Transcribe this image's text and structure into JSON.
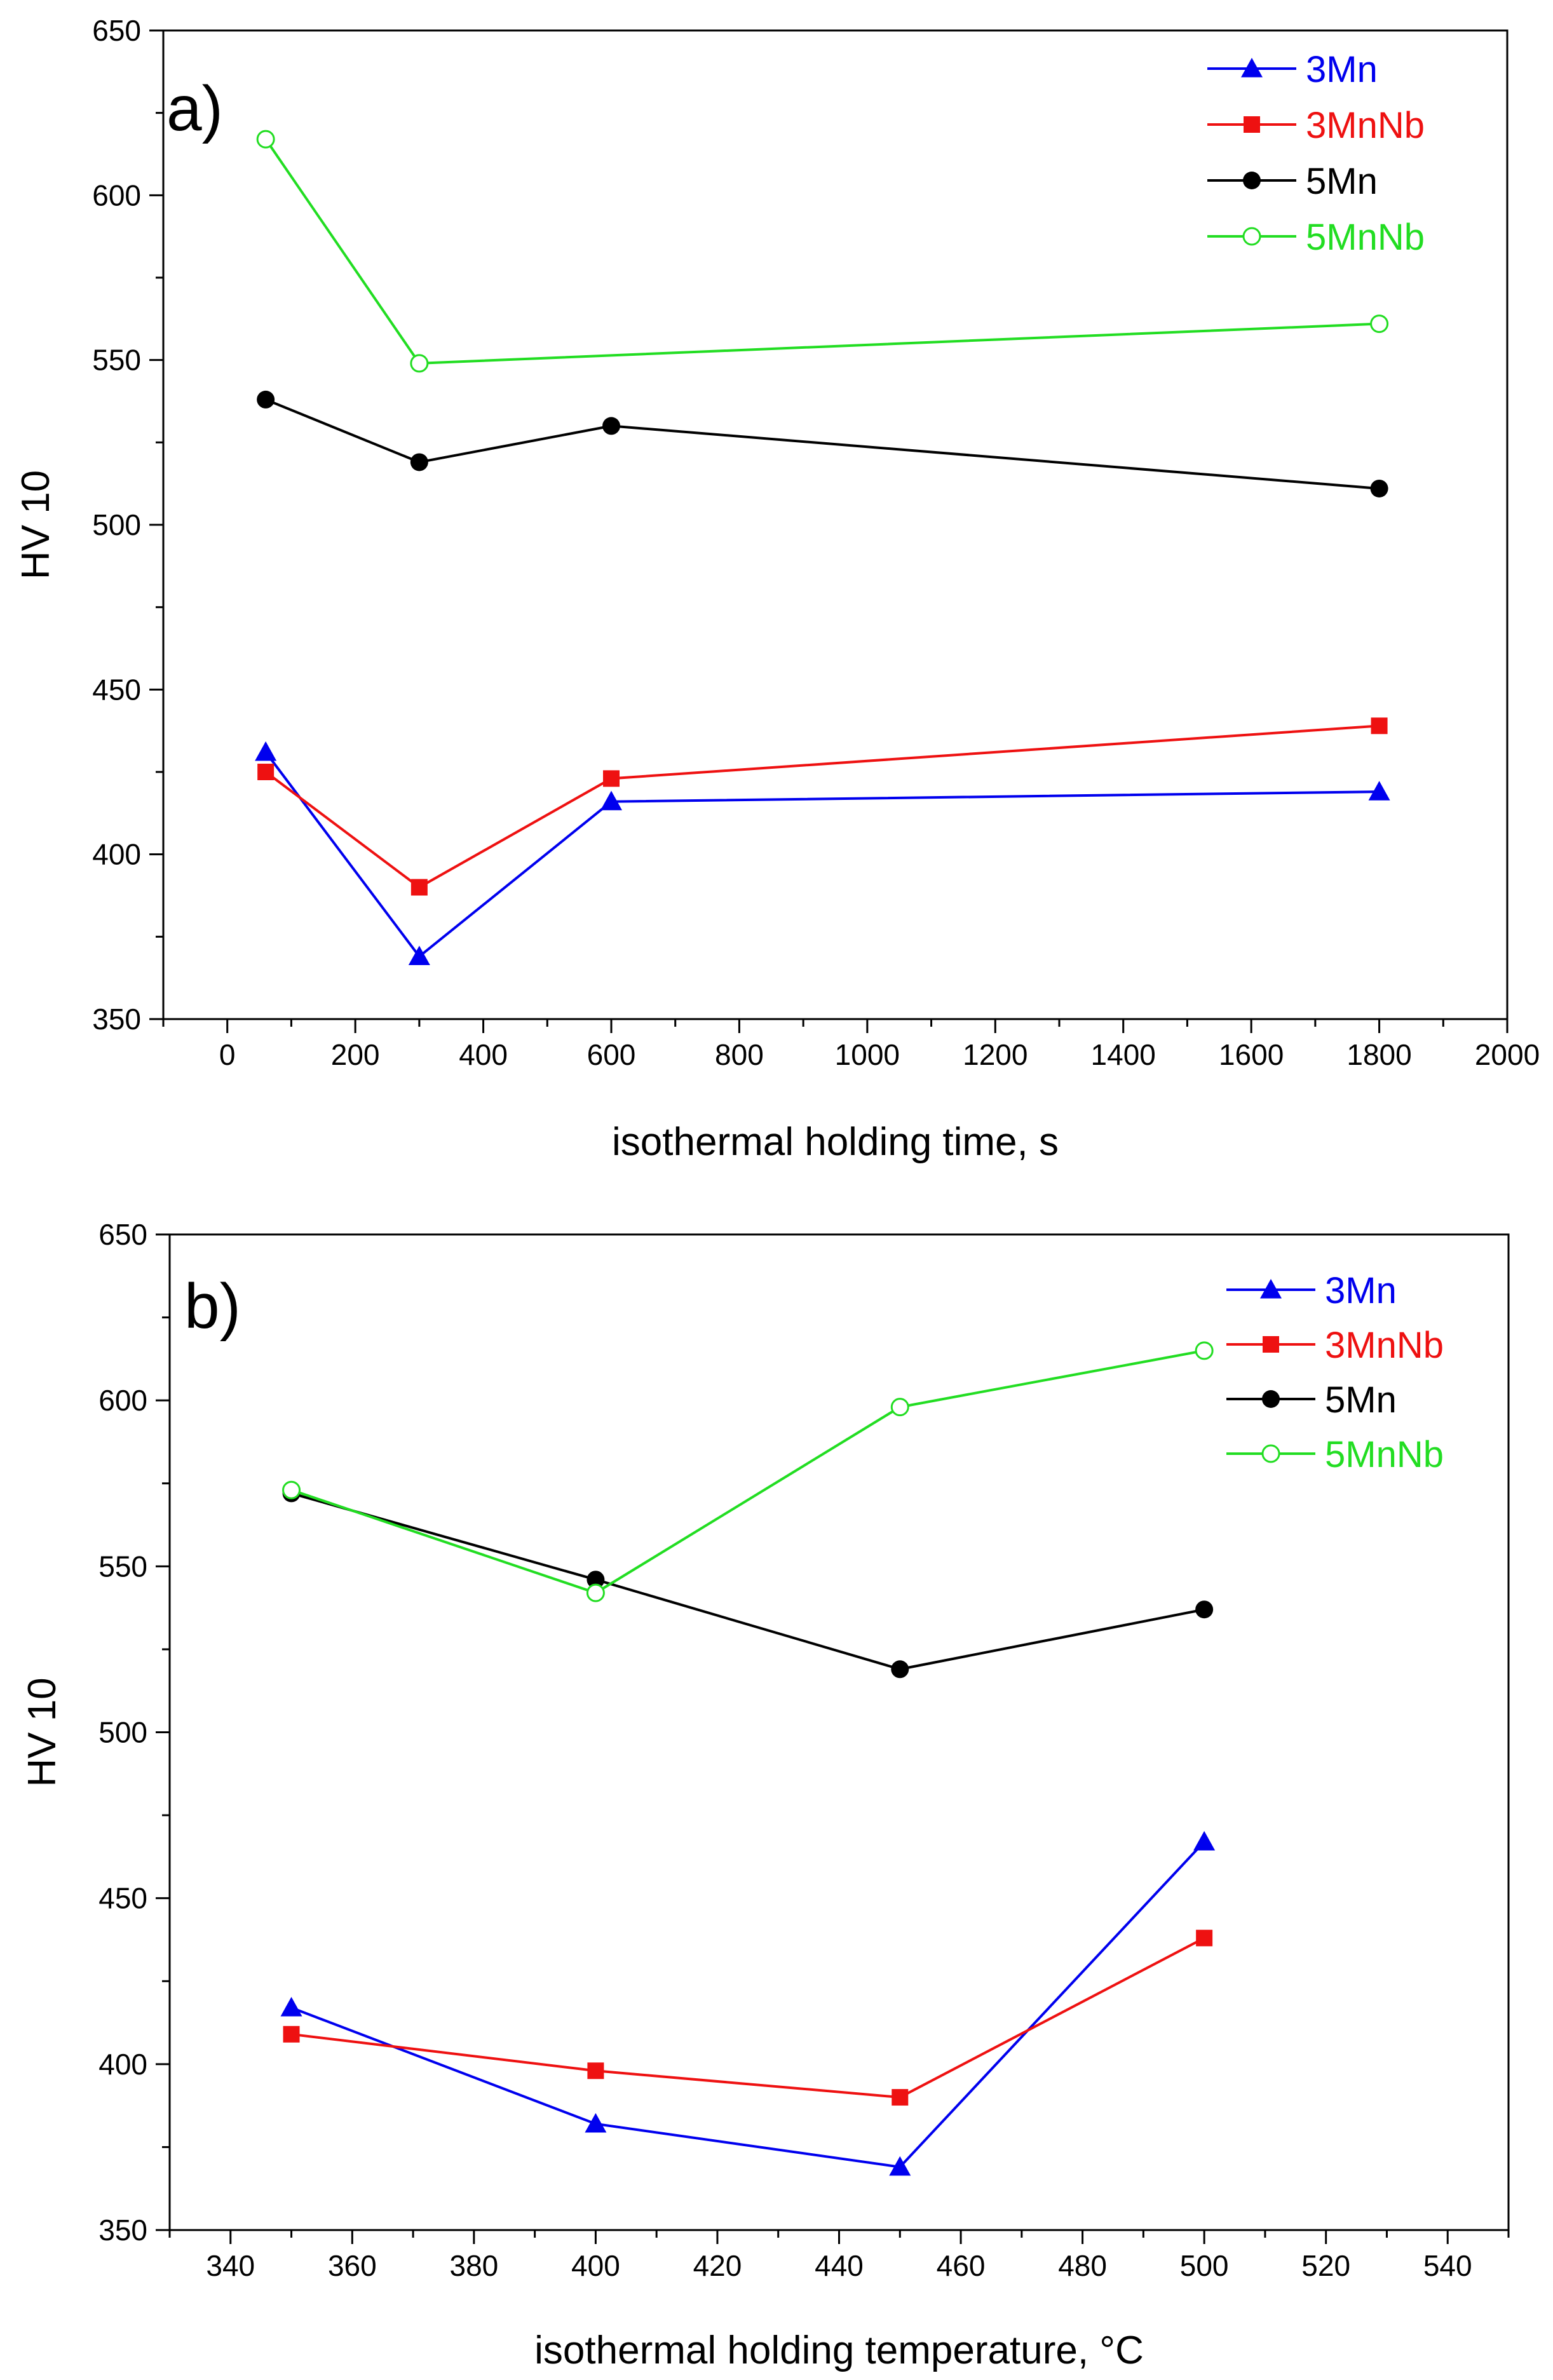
{
  "chart_data": [
    {
      "type": "line",
      "panel_label": "a)",
      "xlabel": "isothermal holding time, s",
      "ylabel": "HV 10",
      "xlim": [
        -100,
        2000
      ],
      "ylim": [
        350,
        650
      ],
      "xticks": [
        0,
        200,
        400,
        600,
        800,
        1000,
        1200,
        1400,
        1600,
        1800,
        2000
      ],
      "yticks": [
        350,
        400,
        450,
        500,
        550,
        600,
        650
      ],
      "grid": false,
      "legend_position": "top-right",
      "series": [
        {
          "name": "3Mn",
          "color": "#0000ee",
          "marker": "triangle",
          "x": [
            60,
            300,
            600,
            1800
          ],
          "y": [
            431,
            369,
            416,
            419
          ]
        },
        {
          "name": "3MnNb",
          "color": "#ee1111",
          "marker": "square",
          "x": [
            60,
            300,
            600,
            1800
          ],
          "y": [
            425,
            390,
            423,
            439
          ]
        },
        {
          "name": "5Mn",
          "color": "#000000",
          "marker": "circle",
          "x": [
            60,
            300,
            600,
            1800
          ],
          "y": [
            538,
            519,
            530,
            511
          ]
        },
        {
          "name": "5MnNb",
          "color": "#22dd22",
          "marker": "open-circle",
          "x": [
            60,
            300,
            1800
          ],
          "y": [
            617,
            549,
            561
          ]
        }
      ]
    },
    {
      "type": "line",
      "panel_label": "b)",
      "xlabel": "isothermal holding temperature, °C",
      "ylabel": "HV 10",
      "xlim": [
        330,
        550
      ],
      "ylim": [
        350,
        650
      ],
      "xticks": [
        340,
        360,
        380,
        400,
        420,
        440,
        460,
        480,
        500,
        520,
        540
      ],
      "yticks": [
        350,
        400,
        450,
        500,
        550,
        600,
        650
      ],
      "grid": false,
      "legend_position": "top-right",
      "series": [
        {
          "name": "3Mn",
          "color": "#0000ee",
          "marker": "triangle",
          "x": [
            350,
            400,
            450,
            500
          ],
          "y": [
            417,
            382,
            369,
            467
          ]
        },
        {
          "name": "3MnNb",
          "color": "#ee1111",
          "marker": "square",
          "x": [
            350,
            400,
            450,
            500
          ],
          "y": [
            409,
            398,
            390,
            438
          ]
        },
        {
          "name": "5Mn",
          "color": "#000000",
          "marker": "circle",
          "x": [
            350,
            400,
            450,
            500
          ],
          "y": [
            572,
            546,
            519,
            537
          ]
        },
        {
          "name": "5MnNb",
          "color": "#22dd22",
          "marker": "open-circle",
          "x": [
            350,
            400,
            450,
            500
          ],
          "y": [
            573,
            542,
            598,
            615
          ]
        }
      ]
    }
  ]
}
